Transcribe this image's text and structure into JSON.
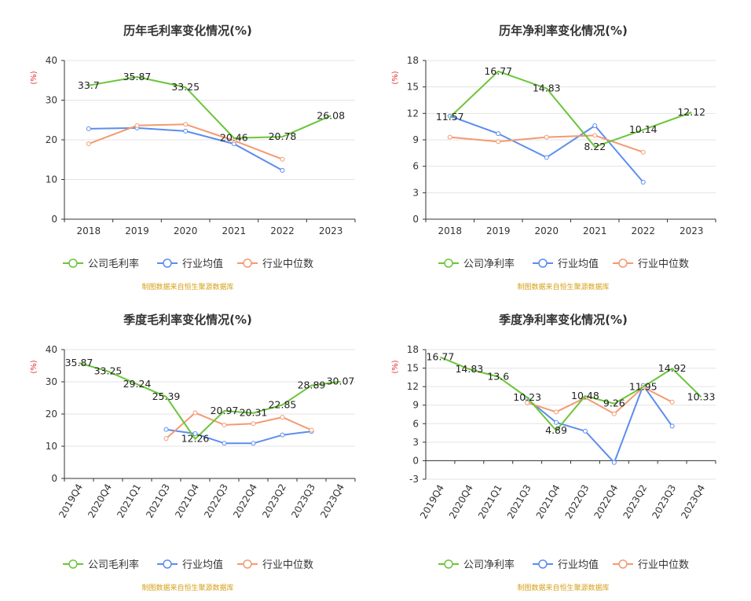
{
  "colors": {
    "company": "#6bc53a",
    "avg": "#5b8def",
    "median": "#f39a72"
  },
  "chart_data": [
    {
      "type": "line",
      "title": "历年毛利率变化情况(%)",
      "ylabel": "(%)",
      "categories": [
        "2018",
        "2019",
        "2020",
        "2021",
        "2022",
        "2023"
      ],
      "ylim": [
        0,
        40
      ],
      "yticks": [
        "0",
        "10",
        "20",
        "30",
        "40"
      ],
      "series": [
        {
          "name": "公司毛利率",
          "values": [
            33.7,
            35.87,
            33.25,
            20.46,
            20.78,
            26.08
          ],
          "labels": [
            "33.7",
            "35.87",
            "33.25",
            "20.46",
            "20.78",
            "26.08"
          ]
        },
        {
          "name": "行业均值",
          "values": [
            22.8,
            23.0,
            22.2,
            19.0,
            12.3,
            null
          ]
        },
        {
          "name": "行业中位数",
          "values": [
            19.0,
            23.6,
            23.9,
            19.8,
            15.1,
            null
          ]
        }
      ],
      "source": "制图数据来自恒生聚源数据库"
    },
    {
      "type": "line",
      "title": "历年净利率变化情况(%)",
      "ylabel": "(%)",
      "categories": [
        "2018",
        "2019",
        "2020",
        "2021",
        "2022",
        "2023"
      ],
      "ylim": [
        0,
        18
      ],
      "yticks": [
        "0",
        "3",
        "6",
        "9",
        "12",
        "15",
        "18"
      ],
      "series": [
        {
          "name": "公司净利率",
          "values": [
            11.57,
            16.77,
            14.83,
            8.22,
            10.14,
            12.12
          ],
          "labels": [
            "11.57",
            "16.77",
            "14.83",
            "8.22",
            "10.14",
            "12.12"
          ]
        },
        {
          "name": "行业均值",
          "values": [
            11.7,
            9.7,
            7.0,
            10.6,
            4.2,
            null
          ]
        },
        {
          "name": "行业中位数",
          "values": [
            9.3,
            8.8,
            9.3,
            9.5,
            7.6,
            null
          ]
        }
      ],
      "source": "制图数据来自恒生聚源数据库"
    },
    {
      "type": "line",
      "title": "季度毛利率变化情况(%)",
      "ylabel": "(%)",
      "categories": [
        "2019Q4",
        "2020Q4",
        "2021Q1",
        "2021Q3",
        "2021Q4",
        "2022Q3",
        "2022Q4",
        "2023Q2",
        "2023Q3",
        "2023Q4"
      ],
      "ylim": [
        0,
        40
      ],
      "yticks": [
        "0",
        "10",
        "20",
        "30",
        "40"
      ],
      "series": [
        {
          "name": "公司毛利率",
          "values": [
            35.87,
            33.25,
            29.24,
            25.39,
            12.26,
            20.97,
            20.31,
            22.85,
            28.89,
            30.07
          ],
          "labels": [
            "35.87",
            "33.25",
            "29.24",
            "25.39",
            "12.26",
            "20.97",
            "20.31",
            "22.85",
            "28.89",
            "30.07"
          ]
        },
        {
          "name": "行业均值",
          "values": [
            null,
            null,
            null,
            15.2,
            13.9,
            10.9,
            10.9,
            13.5,
            14.6,
            null
          ]
        },
        {
          "name": "行业中位数",
          "values": [
            null,
            null,
            null,
            12.4,
            20.4,
            16.6,
            17.0,
            19.0,
            15.0,
            null
          ]
        }
      ],
      "source": "制图数据来自恒生聚源数据库"
    },
    {
      "type": "line",
      "title": "季度净利率变化情况(%)",
      "ylabel": "(%)",
      "categories": [
        "2019Q4",
        "2020Q4",
        "2021Q1",
        "2021Q3",
        "2021Q4",
        "2022Q3",
        "2022Q4",
        "2023Q2",
        "2023Q3",
        "2023Q4"
      ],
      "ylim": [
        -3,
        18
      ],
      "yticks": [
        "-3",
        "0",
        "3",
        "6",
        "9",
        "12",
        "15",
        "18"
      ],
      "series": [
        {
          "name": "公司净利率",
          "values": [
            16.77,
            14.83,
            13.6,
            10.23,
            4.89,
            10.48,
            9.26,
            11.95,
            14.92,
            10.33
          ],
          "labels": [
            "16.77",
            "14.83",
            "13.6",
            "10.23",
            "4.89",
            "10.48",
            "9.26",
            "11.95",
            "14.92",
            "10.33"
          ]
        },
        {
          "name": "行业均值",
          "values": [
            null,
            null,
            null,
            10.0,
            6.2,
            4.8,
            -0.3,
            12.2,
            5.6,
            null
          ]
        },
        {
          "name": "行业中位数",
          "values": [
            null,
            null,
            null,
            9.4,
            7.9,
            10.2,
            7.6,
            11.9,
            9.5,
            null
          ]
        }
      ],
      "source": "制图数据来自恒生聚源数据库"
    }
  ]
}
